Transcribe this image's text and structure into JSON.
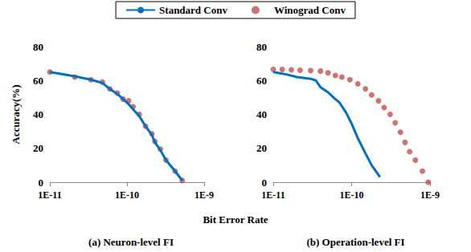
{
  "legend": "top",
  "xlabel": "Bit Error Rate",
  "chart_data": [
    {
      "type": "line",
      "title": "(a) Neuron-level FI",
      "ylabel": "Accuracy(%)",
      "log": "x",
      "grid": false,
      "xlim": [
        1e-11,
        1e-09
      ],
      "xticks": [
        {
          "value": 1e-11,
          "label": "1E-11"
        },
        {
          "value": 1e-10,
          "label": "1E-10"
        },
        {
          "value": 1e-09,
          "label": "1E-9"
        }
      ],
      "ylim": [
        0,
        80
      ],
      "yticks": [
        0,
        20,
        40,
        60,
        80
      ],
      "series": [
        {
          "name": "Standard Conv",
          "type": "line",
          "color": "#0070c0",
          "line_style": "solid",
          "x": [
            1e-11,
            2.1e-11,
            3.4e-11,
            4.8e-11,
            6e-11,
            7.5e-11,
            8.9e-11,
            1.05e-10,
            1.2e-10,
            1.44e-10,
            1.74e-10,
            2.1e-10,
            2.3e-10,
            2.7e-10,
            3.2e-10,
            4.2e-10,
            5.2e-10
          ],
          "values": [
            65,
            62.5,
            60.5,
            58.5,
            55,
            52,
            49,
            46,
            43,
            39,
            33,
            28,
            23.5,
            19,
            13,
            6.5,
            1
          ]
        },
        {
          "name": "Winograd Conv",
          "type": "scatter",
          "color": "#c0504d",
          "marker": "circle",
          "x": [
            1e-11,
            2.1e-11,
            3.4e-11,
            4.8e-11,
            6e-11,
            7.5e-11,
            8.9e-11,
            1.05e-10,
            1.2e-10,
            1.44e-10,
            1.74e-10,
            2.1e-10,
            2.3e-10,
            2.7e-10,
            3.2e-10,
            4.2e-10,
            5.2e-10
          ],
          "values": [
            65,
            62,
            60.5,
            59,
            55,
            52.5,
            49,
            48,
            44.5,
            40,
            33,
            28.5,
            24,
            19.5,
            13,
            6.5,
            1
          ]
        }
      ]
    },
    {
      "type": "line",
      "title": "(b) Operation-level FI",
      "log": "x",
      "grid": false,
      "xlim": [
        1e-11,
        1e-09
      ],
      "xticks": [
        {
          "value": 1e-11,
          "label": "1E-11"
        },
        {
          "value": 1e-10,
          "label": "1E-10"
        },
        {
          "value": 1e-09,
          "label": "1E-9"
        }
      ],
      "ylim": [
        0,
        80
      ],
      "yticks": [
        0,
        20,
        40,
        60,
        80
      ],
      "series": [
        {
          "name": "Standard Conv",
          "type": "line",
          "color": "#0070c0",
          "line_style": "solid",
          "x": [
            1e-11,
            1.5e-11,
            2e-11,
            3e-11,
            3.5e-11,
            4e-11,
            5e-11,
            6e-11,
            7e-11,
            8.5e-11,
            1e-10,
            1.2e-10,
            1.5e-10,
            1.8e-10,
            2.3e-10
          ],
          "values": [
            65,
            63.5,
            62,
            61,
            60,
            56,
            53,
            49.5,
            47,
            41,
            34.5,
            26,
            17,
            10,
            3
          ]
        },
        {
          "name": "Winograd Conv",
          "type": "scatter",
          "color": "#c0504d",
          "marker": "circle",
          "x": [
            1e-11,
            1.3e-11,
            1.7e-11,
            2.2e-11,
            3e-11,
            4e-11,
            5e-11,
            6.2e-11,
            7.5e-11,
            9.5e-11,
            1.2e-10,
            1.5e-10,
            1.8e-10,
            2.2e-10,
            2.6e-10,
            3.1e-10,
            3.6e-10,
            4.2e-10,
            4.8e-10,
            5.5e-10,
            6.5e-10,
            8e-10,
            9.5e-10
          ],
          "values": [
            66.5,
            66.5,
            66.3,
            66,
            65.8,
            65.5,
            64.5,
            63,
            62,
            60.5,
            58,
            55,
            51.5,
            48,
            44,
            40,
            35,
            29.5,
            23.5,
            18,
            13,
            6.5,
            0
          ]
        }
      ]
    }
  ]
}
